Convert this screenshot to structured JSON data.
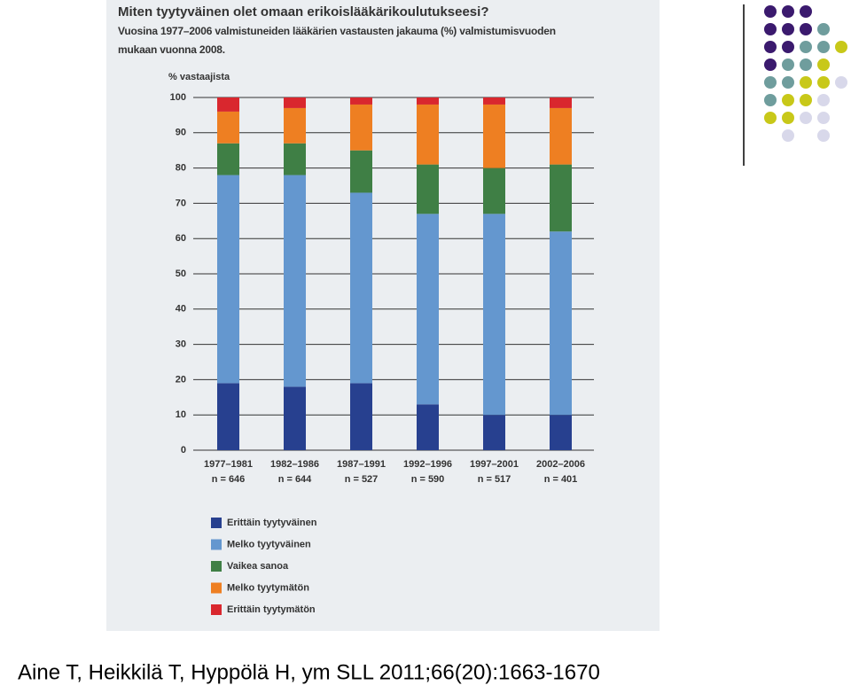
{
  "chart_data": {
    "type": "stacked_bar",
    "title": "Miten tyytyväinen olet omaan erikoislääkärikoulutukseesi?",
    "subtitle": [
      "Vuosina 1977–2006 valmistuneiden lääkärien vastausten jakauma (%) valmistumisvuoden",
      "mukaan vuonna 2008."
    ],
    "y_label": "% vastaajista",
    "categories": [
      "1977–1981",
      "1982–1986",
      "1987–1991",
      "1992–1996",
      "1997–2001",
      "2002–2006"
    ],
    "category_notes": [
      "n = 646",
      "n = 644",
      "n = 527",
      "n = 590",
      "n = 517",
      "n = 401"
    ],
    "series": [
      {
        "name": "Erittäin tyytyväinen",
        "color": "#27408f",
        "values": [
          19,
          18,
          19,
          13,
          10,
          10
        ]
      },
      {
        "name": "Melko tyytyväinen",
        "color": "#6497cf",
        "values": [
          59,
          60,
          54,
          54,
          57,
          52
        ]
      },
      {
        "name": "Vaikea sanoa",
        "color": "#3f7f45",
        "values": [
          9,
          9,
          12,
          14,
          13,
          19
        ]
      },
      {
        "name": "Melko tyytymätön",
        "color": "#ee7f22",
        "values": [
          9,
          10,
          13,
          17,
          18,
          16
        ]
      },
      {
        "name": "Erittäin tyytymätön",
        "color": "#d9272e",
        "values": [
          4,
          3,
          2,
          2,
          2,
          3
        ]
      }
    ],
    "ylim": [
      0,
      100
    ],
    "yticks": [
      0,
      10,
      20,
      30,
      40,
      50,
      60,
      70,
      80,
      90,
      100
    ],
    "grid": true
  },
  "caption": "Aine T, Heikkilä T, Hyppölä H, ym SLL 2011;66(20):1663-1670"
}
